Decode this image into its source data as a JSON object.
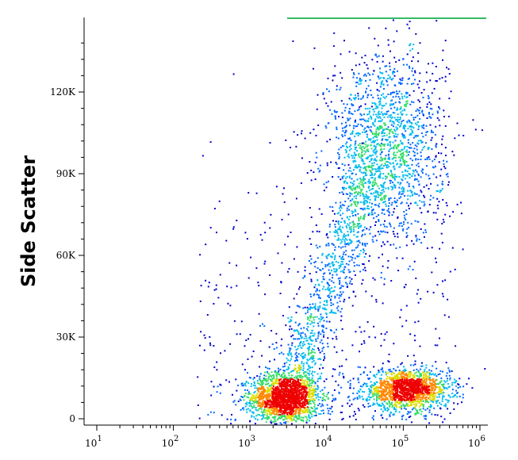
{
  "chart_data": {
    "type": "scatter",
    "title": "",
    "xlabel": "",
    "ylabel": "Side Scatter",
    "x_scale": "log",
    "xlim": [
      10,
      1000000
    ],
    "ylim": [
      0,
      145000
    ],
    "x_ticks": [
      {
        "value": 10,
        "base": "10",
        "exp": "1"
      },
      {
        "value": 100,
        "base": "10",
        "exp": "2"
      },
      {
        "value": 1000,
        "base": "10",
        "exp": "3"
      },
      {
        "value": 10000,
        "base": "10",
        "exp": "4"
      },
      {
        "value": 100000,
        "base": "10",
        "exp": "5"
      },
      {
        "value": 1000000,
        "base": "10",
        "exp": "6"
      }
    ],
    "y_ticks": [
      {
        "value": 0,
        "label": "0"
      },
      {
        "value": 30000,
        "label": "30K"
      },
      {
        "value": 60000,
        "label": "60K"
      },
      {
        "value": 90000,
        "label": "90K"
      },
      {
        "value": 120000,
        "label": "120K"
      }
    ],
    "grid": false,
    "density_colors": [
      "#0000cc",
      "#0066ff",
      "#00bbee",
      "#33dd66",
      "#dddd00",
      "#ff8800",
      "#ee0000"
    ],
    "populations": [
      {
        "name": "",
        "x_center": 2800,
        "y_center": 8000,
        "x_spread_decades": 0.22,
        "y_spread": 4500,
        "weight": 1.0
      },
      {
        "name": "",
        "x_center": 110000,
        "y_center": 11000,
        "x_spread_decades": 0.28,
        "y_spread": 3500,
        "weight": 0.85
      },
      {
        "name": "",
        "x_center": 60000,
        "y_center": 100000,
        "x_spread_decades": 0.38,
        "y_spread": 18000,
        "weight": 0.9
      }
    ]
  }
}
